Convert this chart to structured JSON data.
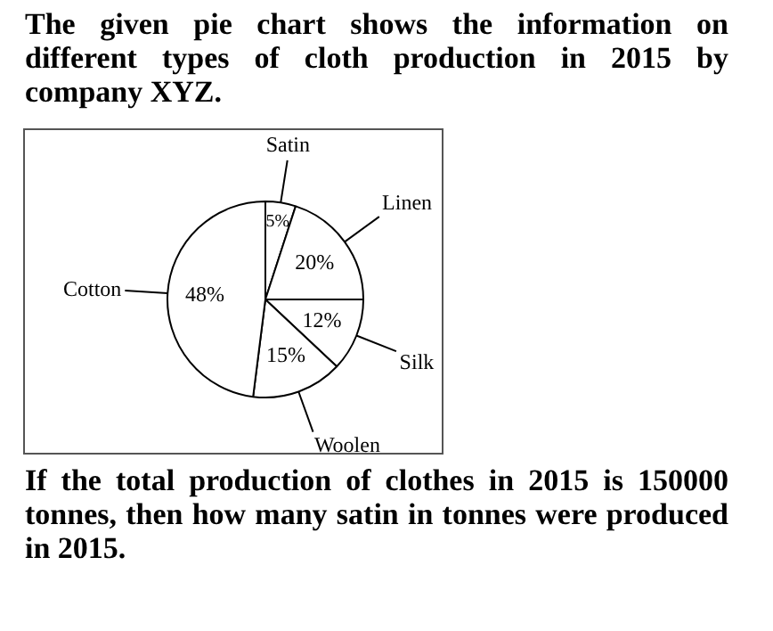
{
  "chart_data": {
    "type": "pie",
    "title": "The given pie chart shows the information on different types of cloth production in 2015 by company XYZ.",
    "categories": [
      "Satin",
      "Linen",
      "Silk",
      "Woolen",
      "Cotton"
    ],
    "values": [
      5,
      20,
      12,
      15,
      48
    ],
    "value_labels": [
      "5%",
      "20%",
      "12%",
      "15%",
      "48%"
    ],
    "colors": [
      "#ffffff",
      "#ffffff",
      "#ffffff",
      "#ffffff",
      "#ffffff"
    ],
    "legend": false,
    "annotations": [
      "If the total production of clothes in 2015 is 150000 tonnes, then how many satin in tonnes were produced in 2015."
    ]
  }
}
